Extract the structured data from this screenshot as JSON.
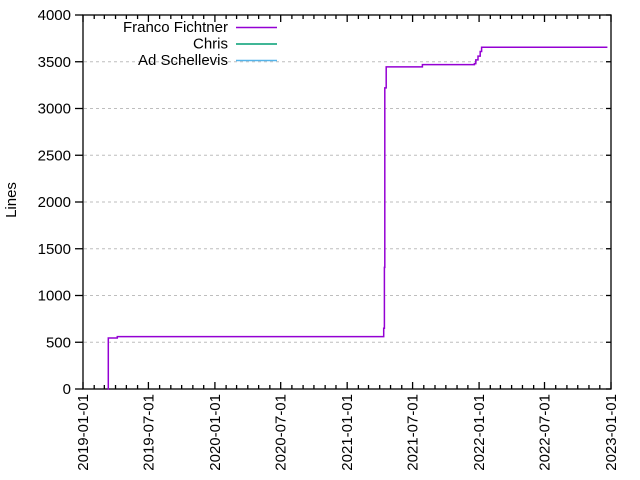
{
  "figure": {
    "background": "#ffffff",
    "border_color": "#000000",
    "grid_color": "#bebebe",
    "text_color": "#000000"
  },
  "chart_data": {
    "type": "line",
    "title": "",
    "xlabel": "",
    "ylabel": "Lines",
    "grid": "horizontal-dashed",
    "legend_position": "top-inside",
    "x_axis": {
      "type": "date",
      "start": "2019-01-01",
      "end": "2023-01-01",
      "major_tick_labels": [
        "2019-01-01",
        "2019-07-01",
        "2020-01-01",
        "2020-07-01",
        "2021-01-01",
        "2021-07-01",
        "2022-01-01",
        "2022-07-01",
        "2023-01-01"
      ],
      "minor_tick_interval": "1 month",
      "tick_label_rotation": -90
    },
    "y_axis": {
      "min": 0,
      "max": 4000,
      "tick_step": 500,
      "tick_labels": [
        "0",
        "500",
        "1000",
        "1500",
        "2000",
        "2500",
        "3000",
        "3500",
        "4000"
      ]
    },
    "series": [
      {
        "name": "Franco Fichtner",
        "color": "#9400D3",
        "style": "steps",
        "points": [
          [
            "2019-03-10",
            0
          ],
          [
            "2019-03-12",
            545
          ],
          [
            "2019-04-06",
            560
          ],
          [
            "2021-04-11",
            560
          ],
          [
            "2021-04-12",
            650
          ],
          [
            "2021-04-14",
            1300
          ],
          [
            "2021-04-15",
            3220
          ],
          [
            "2021-04-19",
            3445
          ],
          [
            "2021-07-28",
            3470
          ],
          [
            "2021-12-19",
            3480
          ],
          [
            "2021-12-23",
            3520
          ],
          [
            "2021-12-29",
            3560
          ],
          [
            "2022-01-04",
            3610
          ],
          [
            "2022-01-08",
            3655
          ],
          [
            "2022-12-22",
            3655
          ]
        ]
      },
      {
        "name": "Chris",
        "color": "#009E73",
        "style": "steps",
        "points": []
      },
      {
        "name": "Ad Schellevis",
        "color": "#56B4E9",
        "style": "steps",
        "points": []
      }
    ]
  }
}
